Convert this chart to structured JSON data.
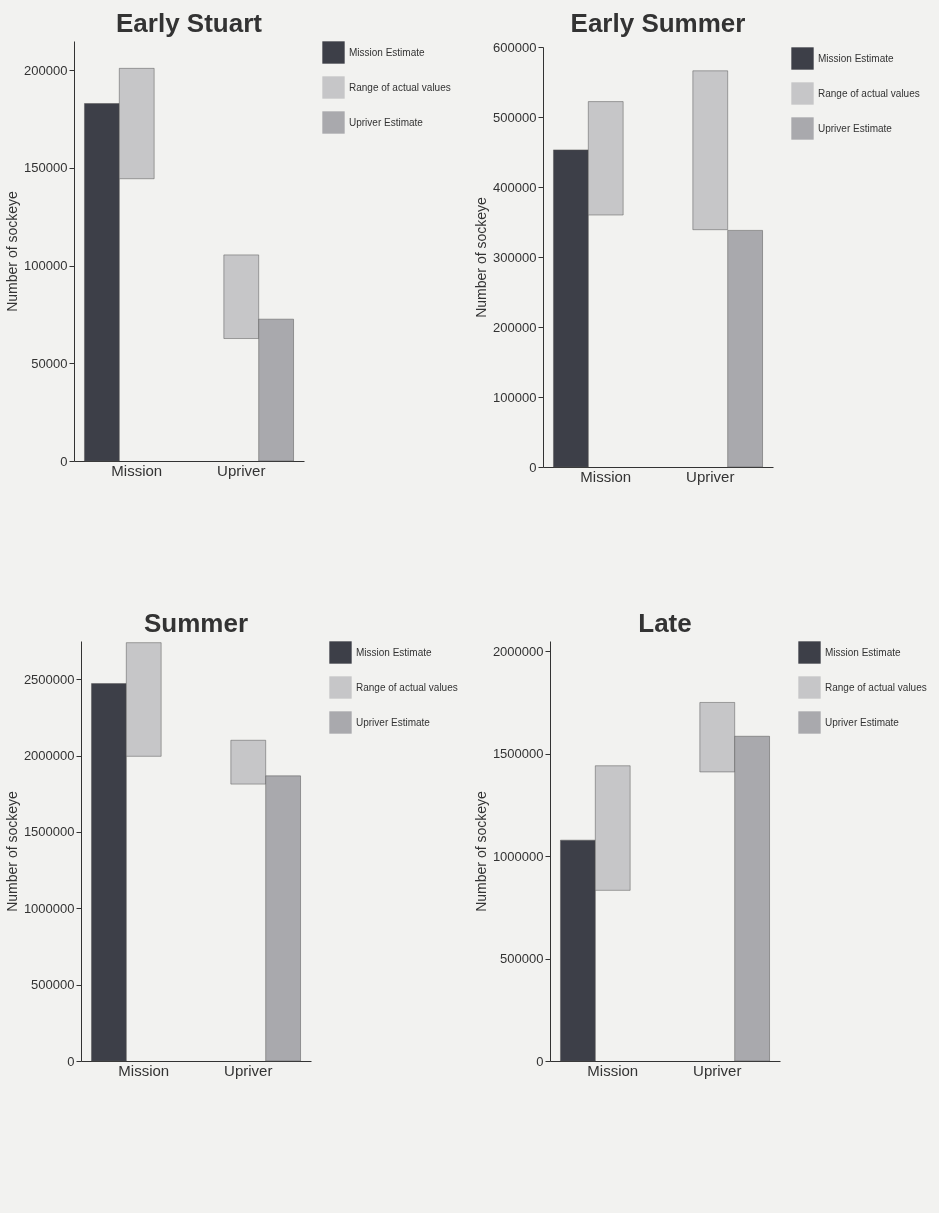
{
  "chart_data": [
    {
      "type": "bar",
      "title": "Early Stuart",
      "ylabel": "Number of sockeye",
      "categories": [
        "Mission",
        "Upriver"
      ],
      "ylim": [
        0,
        215000
      ],
      "yticks": [
        0,
        50000,
        100000,
        150000,
        200000
      ],
      "grid": false,
      "legend": "top right",
      "series": [
        {
          "name": "Mission Estimate",
          "color": "#3d3f48",
          "values": [
            183000,
            null
          ]
        },
        {
          "name": "Range of actual values",
          "color": "#c6c6c8",
          "base": [
            144500,
            62700
          ],
          "values": [
            56500,
            42800
          ]
        },
        {
          "name": "Upriver Estimate",
          "color": "#a9a9ad",
          "values": [
            null,
            72600
          ]
        }
      ]
    },
    {
      "type": "bar",
      "title": "Early Summer",
      "ylabel": "Number of sockeye",
      "categories": [
        "Mission",
        "Upriver"
      ],
      "ylim": [
        0,
        600000
      ],
      "yticks": [
        0,
        100000,
        200000,
        300000,
        400000,
        500000,
        600000
      ],
      "grid": false,
      "legend": "top right",
      "series": [
        {
          "name": "Mission Estimate",
          "color": "#3d3f48",
          "values": [
            453000,
            null
          ]
        },
        {
          "name": "Range of actual values",
          "color": "#c6c6c8",
          "base": [
            360000,
            339000
          ],
          "values": [
            162000,
            227000
          ]
        },
        {
          "name": "Upriver Estimate",
          "color": "#a9a9ad",
          "values": [
            null,
            338000
          ]
        }
      ]
    },
    {
      "type": "bar",
      "title": "Summer",
      "ylabel": "Number of sockeye",
      "categories": [
        "Mission",
        "Upriver"
      ],
      "ylim": [
        0,
        2750000
      ],
      "yticks": [
        0,
        500000,
        1000000,
        1500000,
        2000000,
        2500000
      ],
      "grid": false,
      "legend": "top right",
      "series": [
        {
          "name": "Mission Estimate",
          "color": "#3d3f48",
          "values": [
            2471000,
            null
          ]
        },
        {
          "name": "Range of actual values",
          "color": "#c6c6c8",
          "base": [
            1995000,
            1813000
          ],
          "values": [
            744000,
            287000
          ]
        },
        {
          "name": "Upriver Estimate",
          "color": "#a9a9ad",
          "values": [
            null,
            1867000
          ]
        }
      ]
    },
    {
      "type": "bar",
      "title": "Late",
      "ylabel": "Number of sockeye",
      "categories": [
        "Mission",
        "Upriver"
      ],
      "ylim": [
        0,
        2050000
      ],
      "yticks": [
        0,
        500000,
        1000000,
        1500000,
        2000000
      ],
      "grid": false,
      "legend": "top right",
      "series": [
        {
          "name": "Mission Estimate",
          "color": "#3d3f48",
          "values": [
            1078000,
            null
          ]
        },
        {
          "name": "Range of actual values",
          "color": "#c6c6c8",
          "base": [
            833000,
            1411000
          ],
          "values": [
            608000,
            339000
          ]
        },
        {
          "name": "Upriver Estimate",
          "color": "#a9a9ad",
          "values": [
            null,
            1585000
          ]
        }
      ]
    }
  ]
}
